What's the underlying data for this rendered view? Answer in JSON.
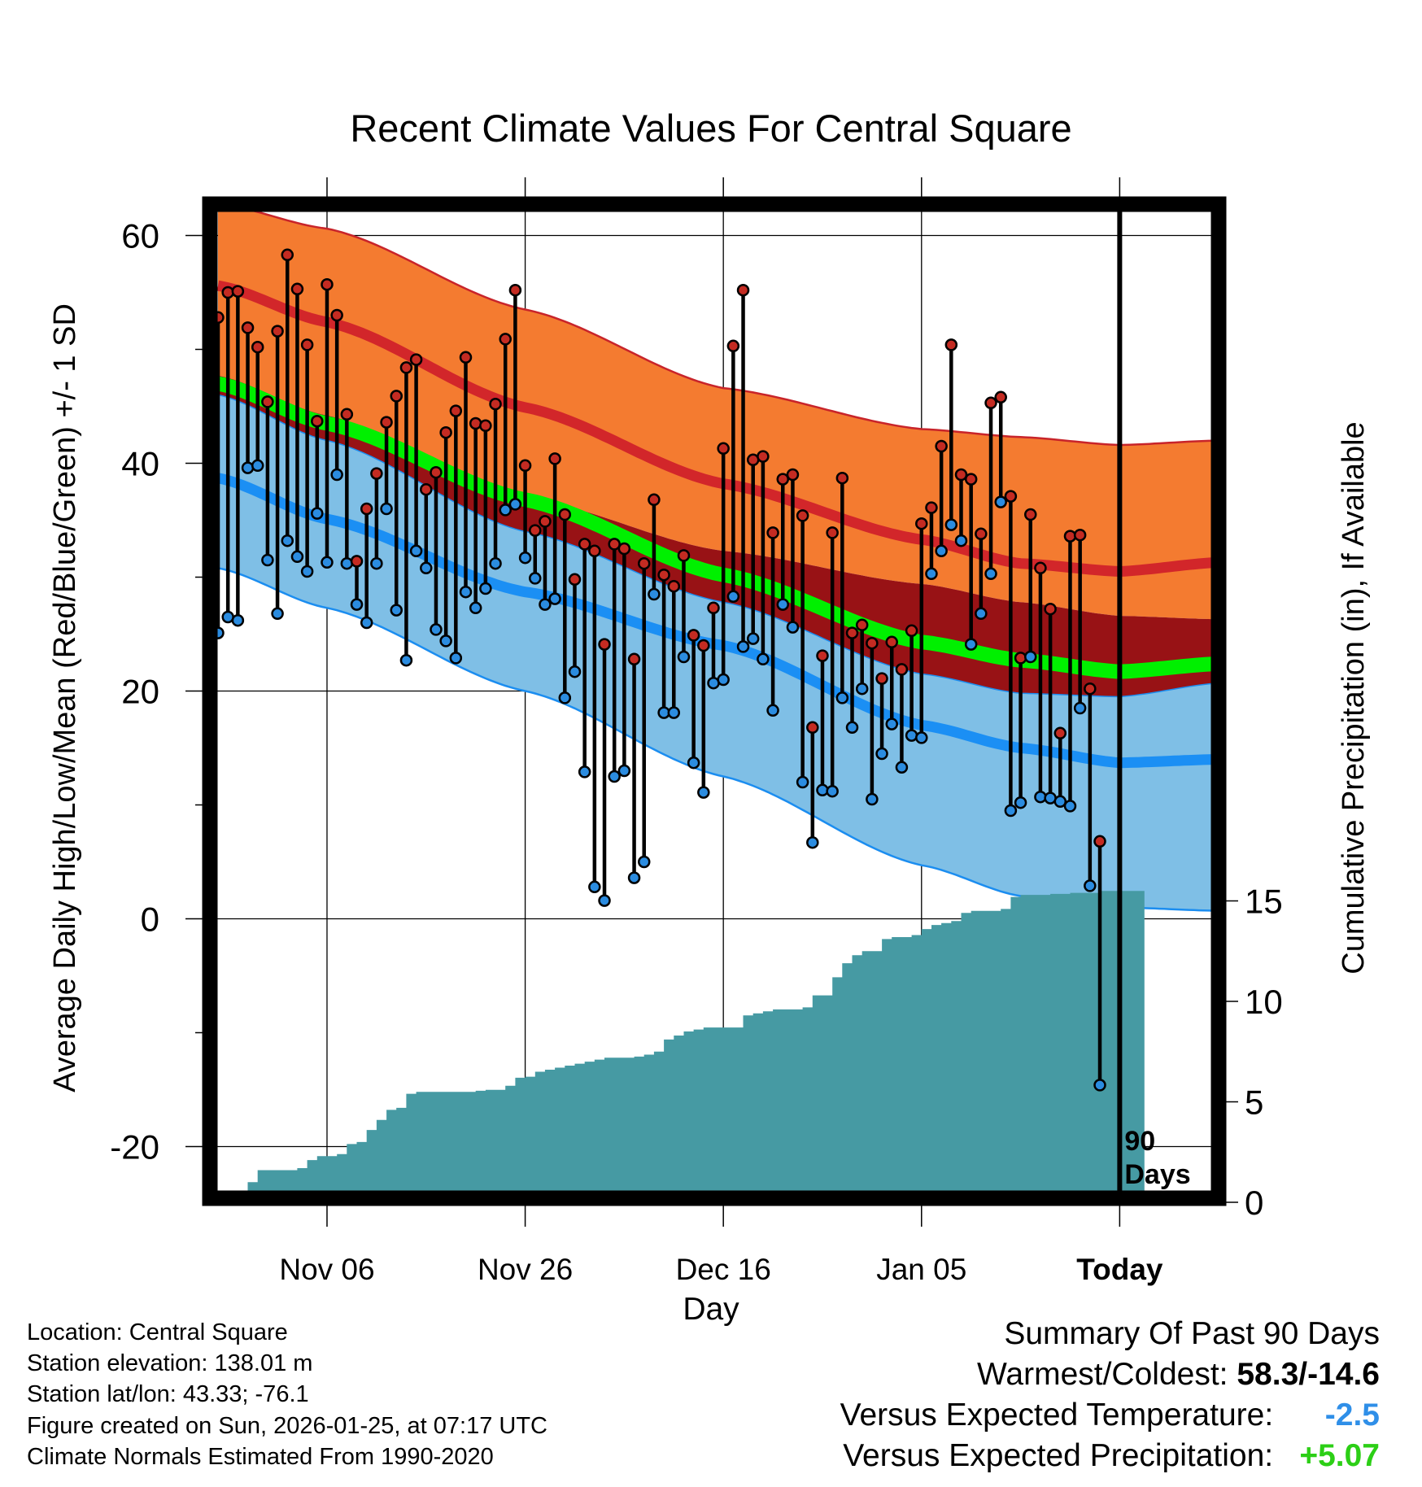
{
  "chart_data": {
    "type": "line",
    "title": "Recent Climate Values For Central Square",
    "xlabel": "Day",
    "ylabel": "Average Daily High/Low/Mean (Red/Blue/Green) +/- 1 SD",
    "y2label": "Cumulative Precipitation (in), If Available",
    "x_tick_labels": [
      "Nov 06",
      "Nov 26",
      "Dec 16",
      "Jan 05",
      "Today"
    ],
    "x_ticks_days_since_oct26": [
      11,
      31,
      51,
      71,
      91
    ],
    "xlim_days": [
      0,
      101
    ],
    "ylim": [
      -24.5,
      62
    ],
    "y_ticks": [
      60,
      40,
      20,
      0,
      -20
    ],
    "y2_ticks": [
      15,
      10,
      5,
      0
    ],
    "y2lim": [
      0,
      15
    ],
    "today_marker_label": "90 Days",
    "normals_days": [
      0,
      11,
      31,
      51,
      71,
      81,
      91,
      101
    ],
    "normal_high": [
      55.6,
      52.4,
      44.9,
      38.2,
      33.3,
      31.2,
      30.5,
      31.3
    ],
    "normal_high_upper": [
      62.8,
      60.6,
      53.5,
      46.6,
      43.0,
      42.3,
      41.6,
      42.0
    ],
    "normal_high_lower": [
      47.7,
      44.2,
      37.0,
      32.3,
      29.4,
      27.8,
      26.6,
      26.3
    ],
    "normal_low": [
      38.7,
      35.1,
      28.7,
      24.0,
      17.0,
      15.0,
      13.7,
      14.0
    ],
    "normal_low_upper": [
      46.0,
      42.0,
      34.0,
      27.8,
      21.5,
      19.8,
      19.5,
      20.7
    ],
    "normal_low_lower": [
      30.8,
      27.3,
      20.0,
      12.5,
      4.7,
      2.0,
      1.0,
      0.7
    ],
    "normal_mean": [
      47.0,
      43.5,
      36.8,
      30.2,
      24.3,
      22.7,
      21.7,
      22.4
    ],
    "observed": [
      {
        "day": 0,
        "high": 52.8,
        "low": 25.1
      },
      {
        "day": 1,
        "high": 55.0,
        "low": 26.5
      },
      {
        "day": 2,
        "high": 55.1,
        "low": 26.2
      },
      {
        "day": 3,
        "high": 51.9,
        "low": 39.6
      },
      {
        "day": 4,
        "high": 50.2,
        "low": 39.8
      },
      {
        "day": 5,
        "high": 45.4,
        "low": 31.5
      },
      {
        "day": 6,
        "high": 51.6,
        "low": 26.8
      },
      {
        "day": 7,
        "high": 58.3,
        "low": 33.2
      },
      {
        "day": 8,
        "high": 55.3,
        "low": 31.8
      },
      {
        "day": 9,
        "high": 50.4,
        "low": 30.5
      },
      {
        "day": 10,
        "high": 43.7,
        "low": 35.6
      },
      {
        "day": 11,
        "high": 55.7,
        "low": 31.3
      },
      {
        "day": 12,
        "high": 53.0,
        "low": 39.0
      },
      {
        "day": 13,
        "high": 44.3,
        "low": 31.2
      },
      {
        "day": 14,
        "high": 31.4,
        "low": 27.6
      },
      {
        "day": 15,
        "high": 36.0,
        "low": 26.0
      },
      {
        "day": 16,
        "high": 39.1,
        "low": 31.2
      },
      {
        "day": 17,
        "high": 43.6,
        "low": 36.0
      },
      {
        "day": 18,
        "high": 45.9,
        "low": 27.1
      },
      {
        "day": 19,
        "high": 48.4,
        "low": 22.7
      },
      {
        "day": 20,
        "high": 49.1,
        "low": 32.3
      },
      {
        "day": 21,
        "high": 37.7,
        "low": 30.8
      },
      {
        "day": 22,
        "high": 39.2,
        "low": 25.4
      },
      {
        "day": 23,
        "high": 42.7,
        "low": 24.4
      },
      {
        "day": 24,
        "high": 44.6,
        "low": 22.9
      },
      {
        "day": 25,
        "high": 49.3,
        "low": 28.7
      },
      {
        "day": 26,
        "high": 43.5,
        "low": 27.3
      },
      {
        "day": 27,
        "high": 43.3,
        "low": 29.0
      },
      {
        "day": 28,
        "high": 45.2,
        "low": 31.2
      },
      {
        "day": 29,
        "high": 50.9,
        "low": 35.9
      },
      {
        "day": 30,
        "high": 55.2,
        "low": 36.4
      },
      {
        "day": 31,
        "high": 39.8,
        "low": 31.7
      },
      {
        "day": 32,
        "high": 34.1,
        "low": 29.9
      },
      {
        "day": 33,
        "high": 34.9,
        "low": 27.6
      },
      {
        "day": 34,
        "high": 40.4,
        "low": 28.1
      },
      {
        "day": 35,
        "high": 35.5,
        "low": 19.4
      },
      {
        "day": 36,
        "high": 29.8,
        "low": 21.7
      },
      {
        "day": 37,
        "high": 32.9,
        "low": 12.9
      },
      {
        "day": 38,
        "high": 32.3,
        "low": 2.8
      },
      {
        "day": 39,
        "high": 24.1,
        "low": 1.6
      },
      {
        "day": 40,
        "high": 32.9,
        "low": 12.5
      },
      {
        "day": 41,
        "high": 32.5,
        "low": 13.0
      },
      {
        "day": 42,
        "high": 22.8,
        "low": 3.6
      },
      {
        "day": 43,
        "high": 31.2,
        "low": 5.0
      },
      {
        "day": 44,
        "high": 36.8,
        "low": 28.5
      },
      {
        "day": 45,
        "high": 30.2,
        "low": 18.1
      },
      {
        "day": 46,
        "high": 29.2,
        "low": 18.1
      },
      {
        "day": 47,
        "high": 31.9,
        "low": 23.0
      },
      {
        "day": 48,
        "high": 24.9,
        "low": 13.7
      },
      {
        "day": 49,
        "high": 24.0,
        "low": 11.1
      },
      {
        "day": 50,
        "high": 27.3,
        "low": 20.7
      },
      {
        "day": 51,
        "high": 41.3,
        "low": 21.0
      },
      {
        "day": 52,
        "high": 50.3,
        "low": 28.3
      },
      {
        "day": 53,
        "high": 55.2,
        "low": 23.9
      },
      {
        "day": 54,
        "high": 40.3,
        "low": 24.6
      },
      {
        "day": 55,
        "high": 40.6,
        "low": 22.8
      },
      {
        "day": 56,
        "high": 33.9,
        "low": 18.3
      },
      {
        "day": 57,
        "high": 38.6,
        "low": 27.6
      },
      {
        "day": 58,
        "high": 39.0,
        "low": 25.6
      },
      {
        "day": 59,
        "high": 35.4,
        "low": 12.0
      },
      {
        "day": 60,
        "high": 16.8,
        "low": 6.7
      },
      {
        "day": 61,
        "high": 23.1,
        "low": 11.3
      },
      {
        "day": 62,
        "high": 33.9,
        "low": 11.2
      },
      {
        "day": 63,
        "high": 38.7,
        "low": 19.4
      },
      {
        "day": 64,
        "high": 25.1,
        "low": 16.8
      },
      {
        "day": 65,
        "high": 25.8,
        "low": 20.2
      },
      {
        "day": 66,
        "high": 24.2,
        "low": 10.5
      },
      {
        "day": 67,
        "high": 21.1,
        "low": 14.5
      },
      {
        "day": 68,
        "high": 24.3,
        "low": 17.1
      },
      {
        "day": 69,
        "high": 21.9,
        "low": 13.3
      },
      {
        "day": 70,
        "high": 25.3,
        "low": 16.1
      },
      {
        "day": 71,
        "high": 34.7,
        "low": 15.9
      },
      {
        "day": 72,
        "high": 36.1,
        "low": 30.3
      },
      {
        "day": 73,
        "high": 41.5,
        "low": 32.3
      },
      {
        "day": 74,
        "high": 50.4,
        "low": 34.6
      },
      {
        "day": 75,
        "high": 39.0,
        "low": 33.2
      },
      {
        "day": 76,
        "high": 38.6,
        "low": 24.1
      },
      {
        "day": 77,
        "high": 33.8,
        "low": 26.8
      },
      {
        "day": 78,
        "high": 45.3,
        "low": 30.3
      },
      {
        "day": 79,
        "high": 45.8,
        "low": 36.6
      },
      {
        "day": 80,
        "high": 37.1,
        "low": 9.5
      },
      {
        "day": 81,
        "high": 22.9,
        "low": 10.2
      },
      {
        "day": 82,
        "high": 35.5,
        "low": 23.0
      },
      {
        "day": 83,
        "high": 30.8,
        "low": 10.7
      },
      {
        "day": 84,
        "high": 27.2,
        "low": 10.6
      },
      {
        "day": 85,
        "high": 16.3,
        "low": 10.3
      },
      {
        "day": 86,
        "high": 33.6,
        "low": 9.9
      },
      {
        "day": 87,
        "high": 33.7,
        "low": 18.5
      },
      {
        "day": 88,
        "high": 20.2,
        "low": 2.9
      },
      {
        "day": 89,
        "high": 6.8,
        "low": -14.6
      }
    ],
    "cumulative_precip": {
      "days": [
        0,
        1,
        2,
        3,
        4,
        5,
        6,
        7,
        8,
        9,
        10,
        11,
        12,
        13,
        14,
        15,
        16,
        17,
        18,
        19,
        20,
        21,
        22,
        23,
        24,
        25,
        26,
        27,
        28,
        29,
        30,
        31,
        32,
        33,
        34,
        35,
        36,
        37,
        38,
        39,
        40,
        41,
        42,
        43,
        44,
        45,
        46,
        47,
        48,
        49,
        50,
        51,
        52,
        53,
        54,
        55,
        56,
        57,
        58,
        59,
        60,
        61,
        62,
        63,
        64,
        65,
        66,
        67,
        68,
        69,
        70,
        71,
        72,
        73,
        74,
        75,
        76,
        77,
        78,
        79,
        80,
        81,
        82,
        83,
        84,
        85,
        86,
        87,
        88,
        89,
        91,
        93.5
      ],
      "values": [
        0,
        0,
        0,
        1.0,
        1.6,
        1.6,
        1.6,
        1.6,
        1.7,
        2.1,
        2.3,
        2.3,
        2.4,
        2.9,
        3.0,
        3.6,
        4.1,
        4.6,
        4.7,
        5.4,
        5.5,
        5.5,
        5.5,
        5.5,
        5.5,
        5.5,
        5.55,
        5.6,
        5.6,
        5.8,
        6.2,
        6.25,
        6.5,
        6.6,
        6.7,
        6.8,
        6.9,
        7.0,
        7.1,
        7.2,
        7.2,
        7.2,
        7.25,
        7.35,
        7.5,
        8.1,
        8.3,
        8.5,
        8.6,
        8.7,
        8.7,
        8.7,
        8.7,
        9.3,
        9.4,
        9.5,
        9.6,
        9.6,
        9.6,
        9.7,
        10.3,
        10.3,
        11.2,
        11.9,
        12.3,
        12.5,
        12.5,
        13.1,
        13.2,
        13.2,
        13.3,
        13.6,
        13.8,
        13.9,
        14.0,
        14.4,
        14.5,
        14.5,
        14.5,
        14.6,
        15.2,
        15.3,
        15.3,
        15.3,
        15.35,
        15.35,
        15.4,
        15.4,
        15.4,
        15.5,
        15.5,
        15.5
      ]
    }
  },
  "colors": {
    "high_band": "#f47b30",
    "high_band_edge": "#c8242a",
    "high_line": "#d2262a",
    "low_band": "#7fbfe6",
    "low_band_edge": "#1b8df0",
    "low_line": "#1b8ff4",
    "overlap": "#981215",
    "mean_line": "#00f000",
    "precip": "#469aa3",
    "high_dot": "#c42b22",
    "low_dot": "#2b8ce0",
    "anomaly_temp": "#2f8fe8",
    "anomaly_precip": "#2ccf16"
  },
  "info": {
    "location": "Location: Central Square",
    "elevation": "Station elevation: 138.01 m",
    "latlon": "Station lat/lon: 43.33; -76.1",
    "created": "Figure created on Sun, 2026-01-25, at 07:17 UTC",
    "normals": "Climate Normals Estimated From 1990-2020"
  },
  "summary": {
    "title": "Summary Of Past 90 Days",
    "warmest_coldest_label": "Warmest/Coldest:",
    "warmest_coldest_value": "58.3/-14.6",
    "temp_label": "Versus Expected Temperature:",
    "temp_value": "-2.5",
    "precip_label": "Versus Expected Precipitation:",
    "precip_value": "+5.07"
  }
}
